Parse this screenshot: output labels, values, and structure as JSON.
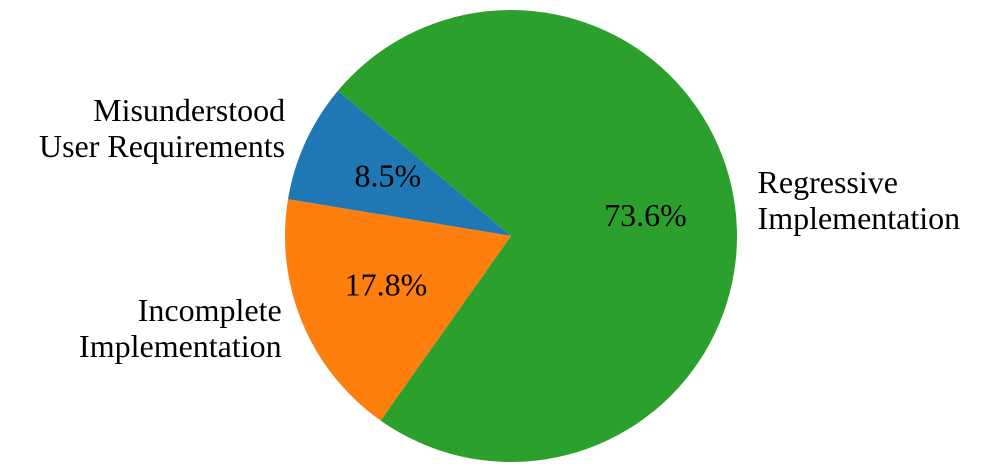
{
  "chart_data": {
    "type": "pie",
    "categories": [
      "Misunderstood\nUser Requirements",
      "Incomplete\nImplementation",
      "Regressive\nImplementation"
    ],
    "values": [
      8.5,
      17.8,
      73.6
    ],
    "value_labels": [
      "8.5%",
      "17.8%",
      "73.6%"
    ],
    "colors": [
      "#1f77b4",
      "#ff7f0e",
      "#2ca02c"
    ],
    "start_angle": 140,
    "direction": "counterclockwise"
  }
}
